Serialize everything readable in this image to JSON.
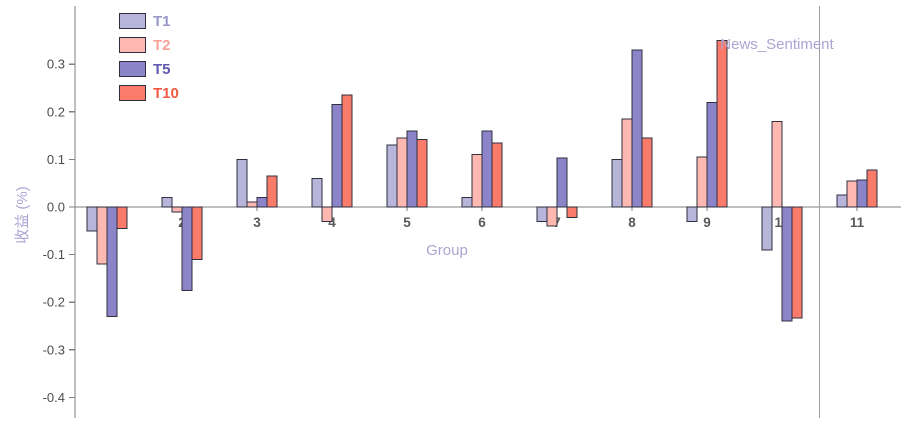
{
  "chart_data": {
    "type": "bar",
    "title": "",
    "annotation": "News_Sentiment",
    "xlabel": "Group",
    "ylabel": "收益 (%)",
    "categories": [
      "1",
      "2",
      "3",
      "4",
      "5",
      "6",
      "7",
      "8",
      "9",
      "10",
      "11"
    ],
    "series": [
      {
        "name": "T1",
        "color": "#b7b5da",
        "label_color": "#9a97c9",
        "values": [
          -0.05,
          0.02,
          0.1,
          0.06,
          0.13,
          0.02,
          -0.03,
          0.1,
          -0.03,
          -0.09,
          0.025
        ]
      },
      {
        "name": "T2",
        "color": "#fcb8b1",
        "label_color": "#f7a39a",
        "values": [
          -0.12,
          -0.01,
          0.01,
          -0.03,
          0.145,
          0.11,
          -0.04,
          0.185,
          0.105,
          0.18,
          0.055
        ]
      },
      {
        "name": "T5",
        "color": "#8b84c9",
        "label_color": "#6059ae",
        "values": [
          -0.23,
          -0.175,
          0.02,
          0.215,
          0.16,
          0.16,
          0.103,
          0.33,
          0.22,
          -0.24,
          0.057
        ]
      },
      {
        "name": "T10",
        "color": "#fb7b6b",
        "label_color": "#f05a45",
        "values": [
          -0.045,
          -0.11,
          0.065,
          0.235,
          0.142,
          0.134,
          -0.022,
          0.145,
          0.35,
          -0.233,
          0.078
        ]
      }
    ],
    "yticks": [
      0.3,
      0.2,
      0.1,
      0.0,
      -0.1,
      -0.2,
      -0.3,
      -0.4
    ],
    "ylim": [
      -0.44,
      0.42
    ],
    "grid": false,
    "legend_position": "top-left",
    "separator_after_category_index": 9
  },
  "colors": {
    "axis": "#7f7f7f",
    "separator": "#a0a0a0",
    "bar_edge": "#2f2f3f",
    "ytick_label": "#4d4d4d",
    "group_label": "#595959",
    "accent_text": "#a9a5d2"
  }
}
